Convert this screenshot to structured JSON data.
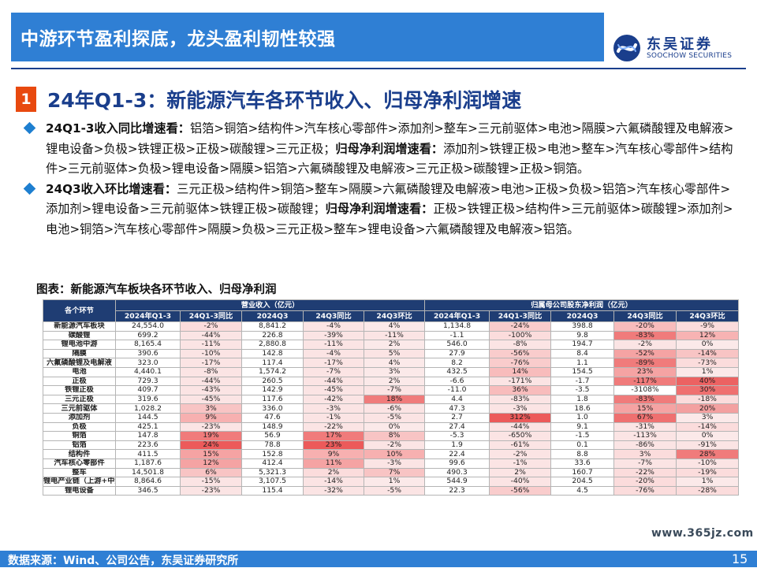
{
  "header": {
    "title": "中游环节盈利探底，龙头盈利韧性较强"
  },
  "logo": {
    "cn": "东吴证券",
    "en": "SOOCHOW SECURITIES"
  },
  "section": {
    "number": "1",
    "title": "24年Q1-3：新能源汽车各环节收入、归母净利润增速"
  },
  "bullets": [
    {
      "label1": "24Q1-3收入同比增速看：",
      "text1": "铝箔>铜箔>结构件>汽车核心零部件>添加剂>整车>三元前驱体>电池>隔膜>六氟磷酸锂及电解液>锂电设备>负极>铁锂正极>正极>碳酸锂>三元正极；",
      "label2": "归母净利润增速看：",
      "text2": "添加剂>铁锂正极>电池>整车>汽车核心零部件>结构件>三元前驱体>负极>锂电设备>隔膜>铝箔>六氟磷酸锂及电解液>三元正极>碳酸锂>正极>铜箔。"
    },
    {
      "label1": "24Q3收入环比增速看：",
      "text1": "三元正极>结构件>铜箔>整车>隔膜>六氟磷酸锂及电解液>电池>正极>负极>铝箔>汽车核心零部件>添加剂>锂电设备>三元前驱体>铁锂正极>碳酸锂；",
      "label2": "归母净利润增速看：",
      "text2": "正极>铁锂正极>结构件>三元前驱体>碳酸锂>添加剂>电池>铜箔>汽车核心零部件>隔膜>负极>三元正极>整车>锂电设备>六氟磷酸锂及电解液>铝箔。"
    }
  ],
  "figure_title": "图表：新能源汽车板块各环节收入、归母净利润",
  "table": {
    "corner": "各个环节",
    "group1": "营业收入（亿元）",
    "group2": "归属母公司股东净利润（亿元）",
    "subheaders": [
      "2024年Q1-3",
      "24Q1-3同比",
      "2024Q3",
      "24Q3同比",
      "24Q3环比",
      "2024年Q1-3",
      "24Q1-3同比",
      "2024Q3",
      "24Q3同比",
      "24Q3环比"
    ],
    "rows": [
      [
        "新能源汽车板块",
        "24,554.0",
        "-2%",
        "8,841.2",
        "-4%",
        "4%",
        "1,134.8",
        "-24%",
        "398.8",
        "-20%",
        "-9%"
      ],
      [
        "碳酸锂",
        "699.2",
        "-44%",
        "226.8",
        "-39%",
        "-11%",
        "-1.1",
        "-100%",
        "9.8",
        "-83%",
        "12%"
      ],
      [
        "锂电池中游",
        "8,165.4",
        "-11%",
        "2,880.8",
        "-11%",
        "2%",
        "546.0",
        "-8%",
        "194.7",
        "-2%",
        "0%"
      ],
      [
        "隔膜",
        "390.6",
        "-10%",
        "142.8",
        "-4%",
        "5%",
        "27.9",
        "-56%",
        "8.4",
        "-52%",
        "-14%"
      ],
      [
        "六氟磷酸锂及电解液",
        "323.0",
        "-17%",
        "117.4",
        "-17%",
        "4%",
        "8.2",
        "-76%",
        "1.1",
        "-89%",
        "-73%"
      ],
      [
        "电池",
        "4,440.1",
        "-8%",
        "1,574.2",
        "-7%",
        "3%",
        "432.5",
        "14%",
        "154.5",
        "23%",
        "1%"
      ],
      [
        "正极",
        "729.3",
        "-44%",
        "260.5",
        "-44%",
        "2%",
        "-6.6",
        "-171%",
        "-1.7",
        "-117%",
        "40%"
      ],
      [
        "铁锂正极",
        "409.7",
        "-43%",
        "142.9",
        "-45%",
        "-7%",
        "-11.0",
        "36%",
        "-3.5",
        "-3108%",
        "30%"
      ],
      [
        "三元正极",
        "319.6",
        "-45%",
        "117.6",
        "-42%",
        "18%",
        "4.4",
        "-83%",
        "1.8",
        "-83%",
        "-18%"
      ],
      [
        "三元前驱体",
        "1,028.2",
        "3%",
        "336.0",
        "-3%",
        "-6%",
        "47.3",
        "-3%",
        "18.6",
        "15%",
        "20%"
      ],
      [
        "添加剂",
        "144.5",
        "9%",
        "47.6",
        "-1%",
        "-5%",
        "2.7",
        "312%",
        "1.0",
        "67%",
        "3%"
      ],
      [
        "负极",
        "425.1",
        "-23%",
        "148.9",
        "-22%",
        "0%",
        "27.4",
        "-44%",
        "9.1",
        "-31%",
        "-14%"
      ],
      [
        "铜箔",
        "147.8",
        "19%",
        "56.9",
        "17%",
        "8%",
        "-5.3",
        "-650%",
        "-1.5",
        "-113%",
        "0%"
      ],
      [
        "铝箔",
        "223.6",
        "24%",
        "78.8",
        "23%",
        "-2%",
        "1.9",
        "-61%",
        "0.1",
        "-86%",
        "-91%"
      ],
      [
        "结构件",
        "411.5",
        "15%",
        "152.8",
        "9%",
        "10%",
        "22.4",
        "-2%",
        "8.8",
        "3%",
        "28%"
      ],
      [
        "汽车核心零部件",
        "1,187.6",
        "12%",
        "412.4",
        "11%",
        "-3%",
        "99.6",
        "-1%",
        "33.6",
        "-7%",
        "-10%"
      ],
      [
        "整车",
        "14,501.8",
        "6%",
        "5,321.3",
        "2%",
        "7%",
        "490.3",
        "2%",
        "160.7",
        "-22%",
        "-19%"
      ],
      [
        "锂电产业链（上游+中游）",
        "8,864.6",
        "-15%",
        "3,107.5",
        "-14%",
        "1%",
        "544.9",
        "-40%",
        "204.5",
        "-20%",
        "1%"
      ],
      [
        "锂电设备",
        "346.5",
        "-23%",
        "115.4",
        "-32%",
        "-5%",
        "22.3",
        "-56%",
        "4.5",
        "-76%",
        "-28%"
      ]
    ],
    "cell_colors": [
      [
        "",
        "",
        "#fbdcdc",
        "",
        "#fbe4e4",
        "#fbe9e9",
        "",
        "#f9cccc",
        "",
        "#f8bcbc",
        "#fbdcdc"
      ],
      [
        "",
        "",
        "#fbe4e4",
        "",
        "#fbe4e4",
        "#fbe4e4",
        "",
        "#fbdcdc",
        "",
        "#f07b7b",
        "#f7b3b3"
      ],
      [
        "",
        "",
        "#fbe4e4",
        "",
        "#fbe4e4",
        "#fbe9e9",
        "",
        "#fbe4e4",
        "",
        "#fbe4e4",
        "#fbe9e9"
      ],
      [
        "",
        "",
        "#fbe4e4",
        "",
        "#fbe4e4",
        "#fbe4e4",
        "",
        "#f9cccc",
        "",
        "#f5a3a3",
        "#f8c4c4"
      ],
      [
        "",
        "",
        "#fbe4e4",
        "",
        "#fbe4e4",
        "#fbe9e9",
        "",
        "#f9cccc",
        "",
        "#f07b7b",
        "#fbdcdc"
      ],
      [
        "",
        "",
        "#fbe4e4",
        "",
        "#fbe4e4",
        "#fbe9e9",
        "",
        "#f8bcbc",
        "",
        "#f5a3a3",
        "#fbe9e9"
      ],
      [
        "",
        "",
        "#fbe4e4",
        "",
        "#fbe4e4",
        "#fbe9e9",
        "",
        "#fbe4e4",
        "",
        "#f07b7b",
        "#ec6262"
      ],
      [
        "",
        "",
        "#fbe4e4",
        "",
        "#fbe4e4",
        "#fbe4e4",
        "",
        "#f8bcbc",
        "",
        "#ffffff",
        "#ef7070"
      ],
      [
        "",
        "",
        "#fbe4e4",
        "",
        "#fbe4e4",
        "#f07b7b",
        "",
        "#fbe4e4",
        "",
        "#f07b7b",
        "#fbdcdc"
      ],
      [
        "",
        "",
        "#f8c4c4",
        "",
        "#fbe4e4",
        "#fbe4e4",
        "",
        "#fbe4e4",
        "",
        "#f5a3a3",
        "#f3a0a0"
      ],
      [
        "",
        "",
        "#f7b0b0",
        "",
        "#fbe4e4",
        "#fbe4e4",
        "",
        "#ec5a5a",
        "",
        "#ef7070",
        "#fbe9e9"
      ],
      [
        "",
        "",
        "#fbe4e4",
        "",
        "#fbe4e4",
        "#fbe9e9",
        "",
        "#fbe4e4",
        "",
        "#fbe4e4",
        "#fbdcdc"
      ],
      [
        "",
        "",
        "#f07b7b",
        "",
        "#f07b7b",
        "#f8c4c4",
        "",
        "#fbe4e4",
        "",
        "#fbe4e4",
        "#fbe9e9"
      ],
      [
        "",
        "",
        "#ec5a5a",
        "",
        "#ec5a5a",
        "#fbe4e4",
        "",
        "#fbe4e4",
        "",
        "#fbe4e4",
        "#fbe4e4"
      ],
      [
        "",
        "",
        "#f5a3a3",
        "",
        "#f7b0b0",
        "#f7b0b0",
        "",
        "#fbe4e4",
        "",
        "#fbdcdc",
        "#f07b7b"
      ],
      [
        "",
        "",
        "#f5a3a3",
        "",
        "#f5a3a3",
        "#fbe4e4",
        "",
        "#fbe4e4",
        "",
        "#fbe4e4",
        "#fbe4e4"
      ],
      [
        "",
        "",
        "#f8c4c4",
        "",
        "#fbdcdc",
        "#f8c4c4",
        "",
        "#fbe4e4",
        "",
        "#fbdcdc",
        "#fbdcdc"
      ],
      [
        "",
        "",
        "#fbe4e4",
        "",
        "#fbe4e4",
        "#fbe9e9",
        "",
        "#fbe4e4",
        "",
        "#fbdcdc",
        "#fbe9e9"
      ],
      [
        "",
        "",
        "#fbe4e4",
        "",
        "#fbe4e4",
        "#fbe4e4",
        "",
        "#f9cccc",
        "",
        "#fbdcdc",
        "#fbdcdc"
      ]
    ]
  },
  "footer": {
    "source": "数据来源：Wind、公司公告，东吴证券研究所",
    "page": "15"
  },
  "watermark": "www.365jz.com",
  "colors": {
    "header_blue": "#2f7fd4",
    "navy": "#1a3e8c",
    "table_header": "#1f3d73",
    "accent_orange": "#e8490f"
  }
}
